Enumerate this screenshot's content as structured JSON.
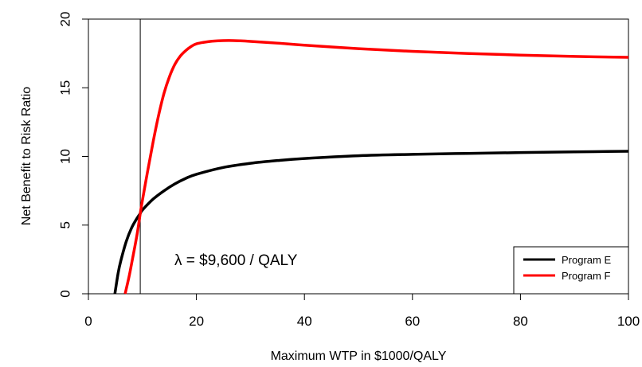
{
  "chart_data": {
    "type": "line",
    "xlabel": "Maximum WTP in $1000/QALY",
    "ylabel": "Net Benefit to Risk Ratio",
    "xlim": [
      0,
      100
    ],
    "ylim": [
      0,
      20
    ],
    "x_ticks": [
      0,
      20,
      40,
      60,
      80,
      100
    ],
    "y_ticks": [
      0,
      5,
      10,
      15,
      20
    ],
    "grid": false,
    "legend_position": "bottom-right",
    "annotation": {
      "text": "λ = $9,600 / QALY",
      "vline_x": 9.6
    },
    "series": [
      {
        "name": "Program E",
        "color": "#000000",
        "x": [
          4.9,
          5.5,
          6,
          7,
          8,
          9,
          9.6,
          10,
          12,
          14,
          16,
          18,
          20,
          25,
          30,
          35,
          40,
          50,
          60,
          70,
          80,
          90,
          100
        ],
        "y": [
          0,
          1.5,
          2.4,
          3.8,
          4.8,
          5.5,
          5.85,
          6.1,
          6.9,
          7.5,
          8.0,
          8.4,
          8.7,
          9.2,
          9.5,
          9.7,
          9.85,
          10.05,
          10.15,
          10.22,
          10.28,
          10.33,
          10.38
        ]
      },
      {
        "name": "Program F",
        "color": "#ff0000",
        "x": [
          6.8,
          7.5,
          8,
          9,
          9.6,
          10,
          11,
          12,
          13,
          14,
          15,
          16,
          17,
          18,
          19,
          20,
          22,
          24,
          26,
          28,
          30,
          35,
          40,
          50,
          60,
          70,
          80,
          90,
          100
        ],
        "y": [
          0,
          1.2,
          2.2,
          4.3,
          5.85,
          6.8,
          9.0,
          11.1,
          13.0,
          14.6,
          15.8,
          16.7,
          17.3,
          17.7,
          18.0,
          18.2,
          18.35,
          18.42,
          18.44,
          18.42,
          18.38,
          18.25,
          18.1,
          17.85,
          17.65,
          17.5,
          17.38,
          17.28,
          17.22
        ]
      }
    ]
  }
}
